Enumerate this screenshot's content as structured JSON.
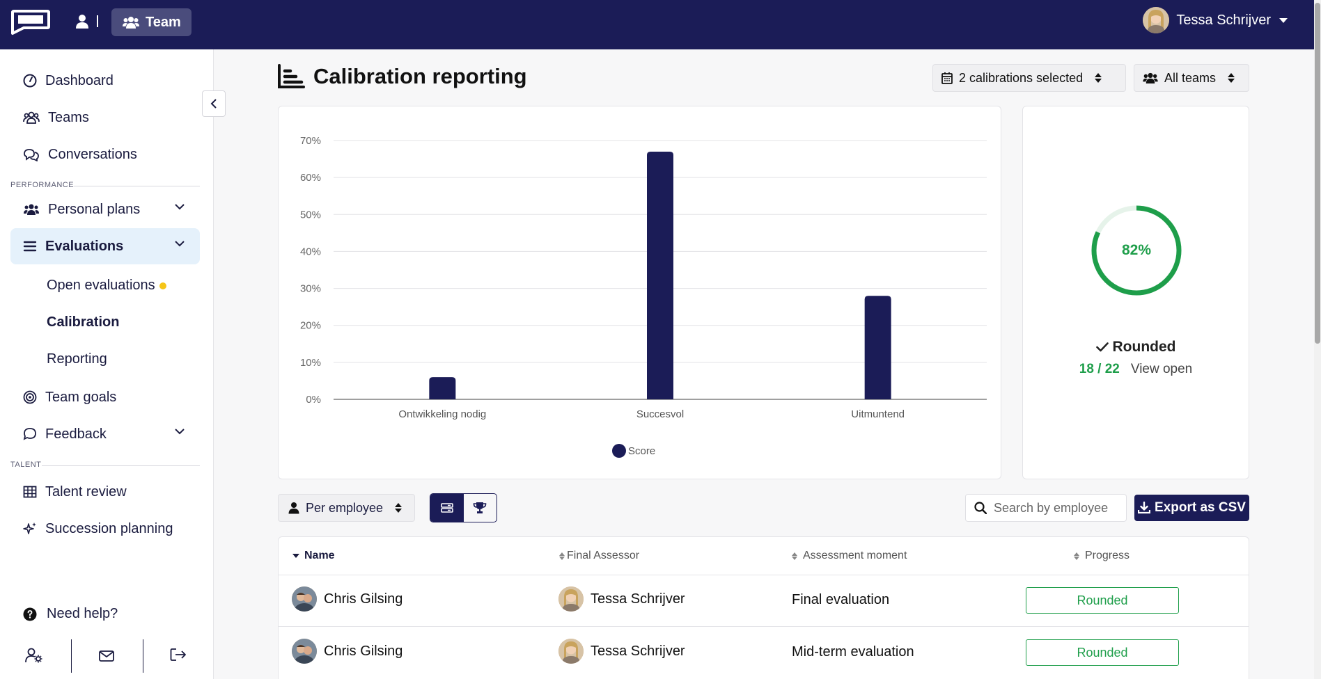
{
  "topbar": {
    "team_label": "Team",
    "user_name": "Tessa Schrijver"
  },
  "sidebar": {
    "items": [
      {
        "label": "Dashboard"
      },
      {
        "label": "Teams"
      },
      {
        "label": "Conversations"
      }
    ],
    "performance_label": "PERFORMANCE",
    "performance_items": [
      {
        "label": "Personal plans"
      },
      {
        "label": "Evaluations"
      }
    ],
    "evaluation_sub": [
      {
        "label": "Open evaluations"
      },
      {
        "label": "Calibration"
      },
      {
        "label": "Reporting"
      }
    ],
    "other_items": [
      {
        "label": "Team goals"
      },
      {
        "label": "Feedback"
      }
    ],
    "talent_label": "TALENT",
    "talent_items": [
      {
        "label": "Talent review"
      },
      {
        "label": "Succession planning"
      }
    ],
    "help_label": "Need help?"
  },
  "page": {
    "title": "Calibration reporting",
    "calibrations_select": "2 calibrations selected",
    "teams_select": "All teams"
  },
  "chart_data": {
    "type": "bar",
    "categories": [
      "Ontwikkeling nodig",
      "Succesvol",
      "Uitmuntend"
    ],
    "series": [
      {
        "name": "Score",
        "values": [
          6,
          67,
          28
        ]
      }
    ],
    "ylim": [
      0,
      70
    ],
    "yticks": [
      "0%",
      "10%",
      "20%",
      "30%",
      "40%",
      "50%",
      "60%",
      "70%"
    ],
    "grid": true,
    "legend": "bottom-center",
    "bar_color": "#1b1c57"
  },
  "summary": {
    "percent_value": 82,
    "percent_label": "82%",
    "status_label": "Rounded",
    "count": "18 / 22",
    "view_open": "View open",
    "gauge_color": "#1e9e4a"
  },
  "toolbar": {
    "per_employee": "Per employee",
    "search_placeholder": "Search by employee",
    "export_label": "Export as CSV"
  },
  "table": {
    "columns": [
      "Name",
      "Final Assessor",
      "Assessment moment",
      "Progress"
    ],
    "rows": [
      {
        "name": "Chris Gilsing",
        "assessor": "Tessa Schrijver",
        "moment": "Final evaluation",
        "progress": "Rounded"
      },
      {
        "name": "Chris Gilsing",
        "assessor": "Tessa Schrijver",
        "moment": "Mid-term evaluation",
        "progress": "Rounded"
      }
    ]
  }
}
